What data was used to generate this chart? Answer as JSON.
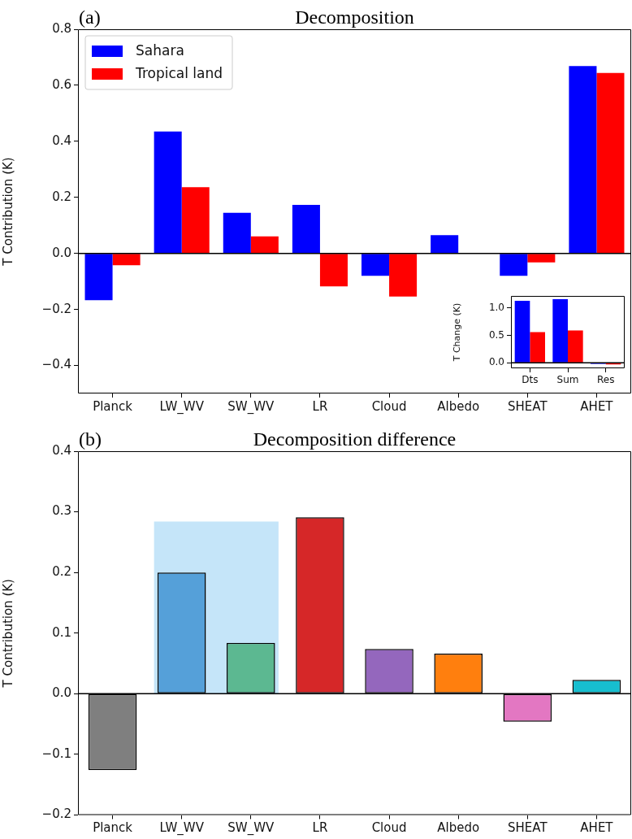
{
  "chart_data": [
    {
      "type": "bar",
      "title": "Decomposition",
      "ylabel": "T Contribution (K)",
      "annotations": [
        "(a)"
      ],
      "categories": [
        "Planck",
        "LW_WV",
        "SW_WV",
        "LR",
        "Cloud",
        "Albedo",
        "SHEAT",
        "AHET"
      ],
      "series": [
        {
          "name": "Sahara",
          "color": "#0000ff",
          "values": [
            -0.167,
            0.435,
            0.145,
            0.173,
            -0.08,
            0.065,
            -0.08,
            0.669
          ]
        },
        {
          "name": "Tropical land",
          "color": "#ff0000",
          "values": [
            -0.042,
            0.236,
            0.061,
            -0.118,
            -0.154,
            0,
            -0.032,
            0.644
          ]
        }
      ],
      "ylim": [
        -0.5,
        0.8
      ],
      "yticks": [
        {
          "value": -0.4,
          "label": "−0.4"
        },
        {
          "value": -0.2,
          "label": "−0.2"
        },
        {
          "value": 0,
          "label": "0.0"
        },
        {
          "value": 0.2,
          "label": "0.2"
        },
        {
          "value": 0.4,
          "label": "0.4"
        },
        {
          "value": 0.6,
          "label": "0.6"
        },
        {
          "value": 0.8,
          "label": "0.8"
        }
      ],
      "ref_lines": [
        {
          "axis": "y",
          "value": 0,
          "color": "#000000"
        }
      ],
      "legend": "top left"
    },
    {
      "type": "bar",
      "ylabel": "T Change (K)",
      "categories": [
        "Dts",
        "Sum",
        "Res"
      ],
      "series": [
        {
          "color": "#0000ff",
          "values": [
            1.13,
            1.16,
            -0.02
          ]
        },
        {
          "color": "#ff0000",
          "values": [
            0.56,
            0.59,
            -0.03
          ]
        }
      ],
      "ylim": [
        -0.1,
        1.22
      ],
      "yticks": [
        {
          "value": 0,
          "label": "0.0"
        },
        {
          "value": 0.5,
          "label": "0.5"
        },
        {
          "value": 1,
          "label": "1.0"
        }
      ],
      "ref_lines": [
        {
          "axis": "y",
          "value": 0,
          "color": "#000000"
        }
      ]
    },
    {
      "type": "bar",
      "title": "Decomposition difference",
      "ylabel": "T Contribution (K)",
      "annotations": [
        "(b)"
      ],
      "categories": [
        "Planck",
        "LW_WV",
        "SW_WV",
        "LR",
        "Cloud",
        "Albedo",
        "SHEAT",
        "AHET"
      ],
      "values": [
        -0.126,
        0.2,
        0.084,
        0.291,
        0.074,
        0.066,
        -0.046,
        0.023
      ],
      "colors": [
        "#7f7f7f",
        "#55a0d9",
        "#5cb891",
        "#d62728",
        "#9467bd",
        "#ff7f0e",
        "#e377c2",
        "#17becf"
      ],
      "ylim": [
        -0.2,
        0.4
      ],
      "yticks": [
        {
          "value": -0.2,
          "label": "−0.2"
        },
        {
          "value": -0.1,
          "label": "−0.1"
        },
        {
          "value": 0,
          "label": "0.0"
        },
        {
          "value": 0.1,
          "label": "0.1"
        },
        {
          "value": 0.2,
          "label": "0.2"
        },
        {
          "value": 0.3,
          "label": "0.3"
        },
        {
          "value": 0.4,
          "label": "0.4"
        }
      ],
      "ref_lines": [
        {
          "axis": "y",
          "value": 0,
          "color": "#000000"
        }
      ],
      "bands": [
        {
          "axis": "x",
          "from": "LW_WV",
          "to": "SW_WV",
          "color": "#c5e5f9"
        }
      ]
    }
  ]
}
